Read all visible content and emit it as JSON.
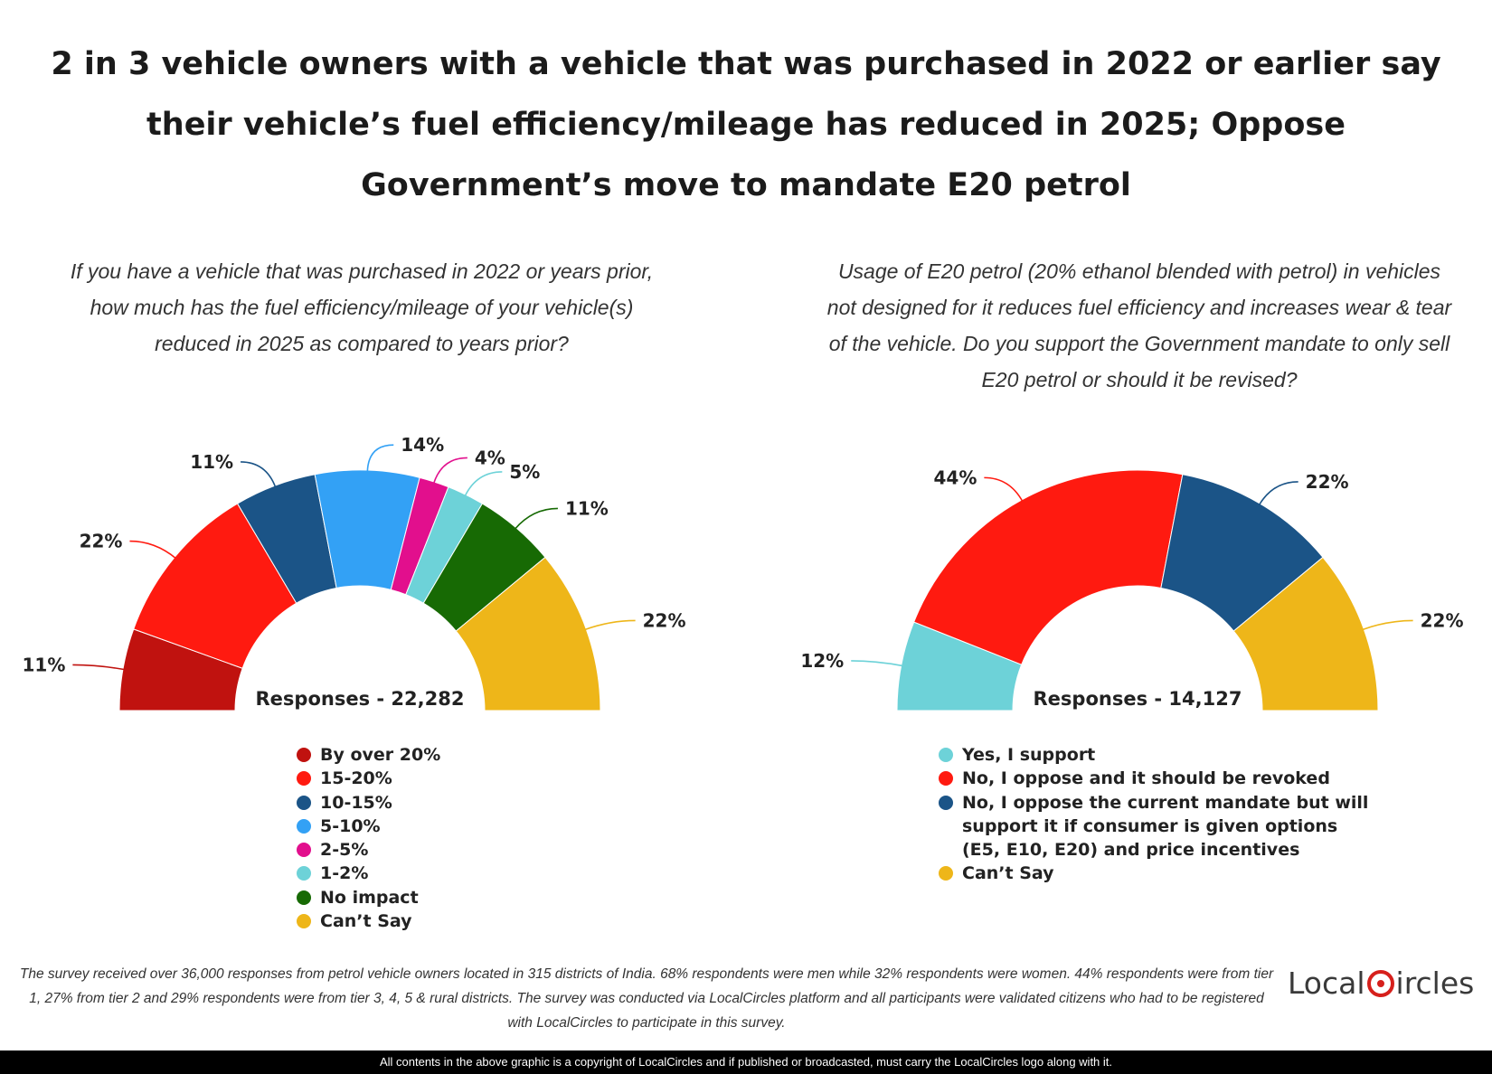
{
  "title": "2 in 3 vehicle owners with a vehicle that was purchased in 2022 or earlier say their vehicle’s fuel efficiency/mileage has reduced in 2025; Oppose Government’s move to mandate E20 petrol",
  "chart_data": [
    {
      "type": "pie",
      "variant": "semicircle-donut",
      "title": "If you have a vehicle that was purchased in 2022 or years prior, how much has the fuel efficiency/mileage of your vehicle(s) reduced in 2025 as compared to years prior?",
      "responses_label": "Responses - 22,282",
      "legend_position": "bottom",
      "slices": [
        {
          "label": "By over 20%",
          "value": 11,
          "display": "11%",
          "color": "#c0120f"
        },
        {
          "label": "15-20%",
          "value": 22,
          "display": "22%",
          "color": "#ff1a10"
        },
        {
          "label": "10-15%",
          "value": 11,
          "display": "11%",
          "color": "#1b5487"
        },
        {
          "label": "5-10%",
          "value": 14,
          "display": "14%",
          "color": "#33a1f5"
        },
        {
          "label": "2-5%",
          "value": 4,
          "display": "4%",
          "color": "#e20f8d"
        },
        {
          "label": "1-2%",
          "value": 5,
          "display": "5%",
          "color": "#6dd2d8"
        },
        {
          "label": "No impact",
          "value": 11,
          "display": "11%",
          "color": "#176a04"
        },
        {
          "label": "Can’t Say",
          "value": 22,
          "display": "22%",
          "color": "#eeb619"
        }
      ]
    },
    {
      "type": "pie",
      "variant": "semicircle-donut",
      "title": "Usage of E20 petrol (20% ethanol blended with petrol) in vehicles not designed for it reduces fuel efficiency and increases wear & tear of the vehicle. Do you support the Government mandate to only sell E20 petrol or should it be revised?",
      "responses_label": "Responses - 14,127",
      "legend_position": "bottom",
      "slices": [
        {
          "label": "Yes, I support",
          "value": 12,
          "display": "12%",
          "color": "#6dd2d8"
        },
        {
          "label": "No, I oppose and it should be revoked",
          "value": 44,
          "display": "44%",
          "color": "#ff1a10"
        },
        {
          "label": "No, I oppose the current mandate but will support it if consumer is given options (E5, E10, E20) and price incentives",
          "value": 22,
          "display": "22%",
          "color": "#1b5487"
        },
        {
          "label": "Can’t Say",
          "value": 22,
          "display": "22%",
          "color": "#eeb619"
        }
      ]
    }
  ],
  "footnote": "The survey received over 36,000 responses from petrol vehicle owners located in 315 districts of India. 68% respondents were men while 32% respondents were women. 44% respondents were from tier 1, 27% from tier 2 and 29% respondents were from tier 3, 4, 5 & rural districts. The survey was conducted via LocalCircles platform and all participants were validated citizens who had to be registered with LocalCircles to participate in this survey.",
  "logo": {
    "text_left": "Local",
    "text_right": "ircles",
    "color": "#d6201c"
  },
  "copyright": "All contents in the above graphic is a copyright of LocalCircles and if published or broadcasted, must carry the LocalCircles logo along with it."
}
